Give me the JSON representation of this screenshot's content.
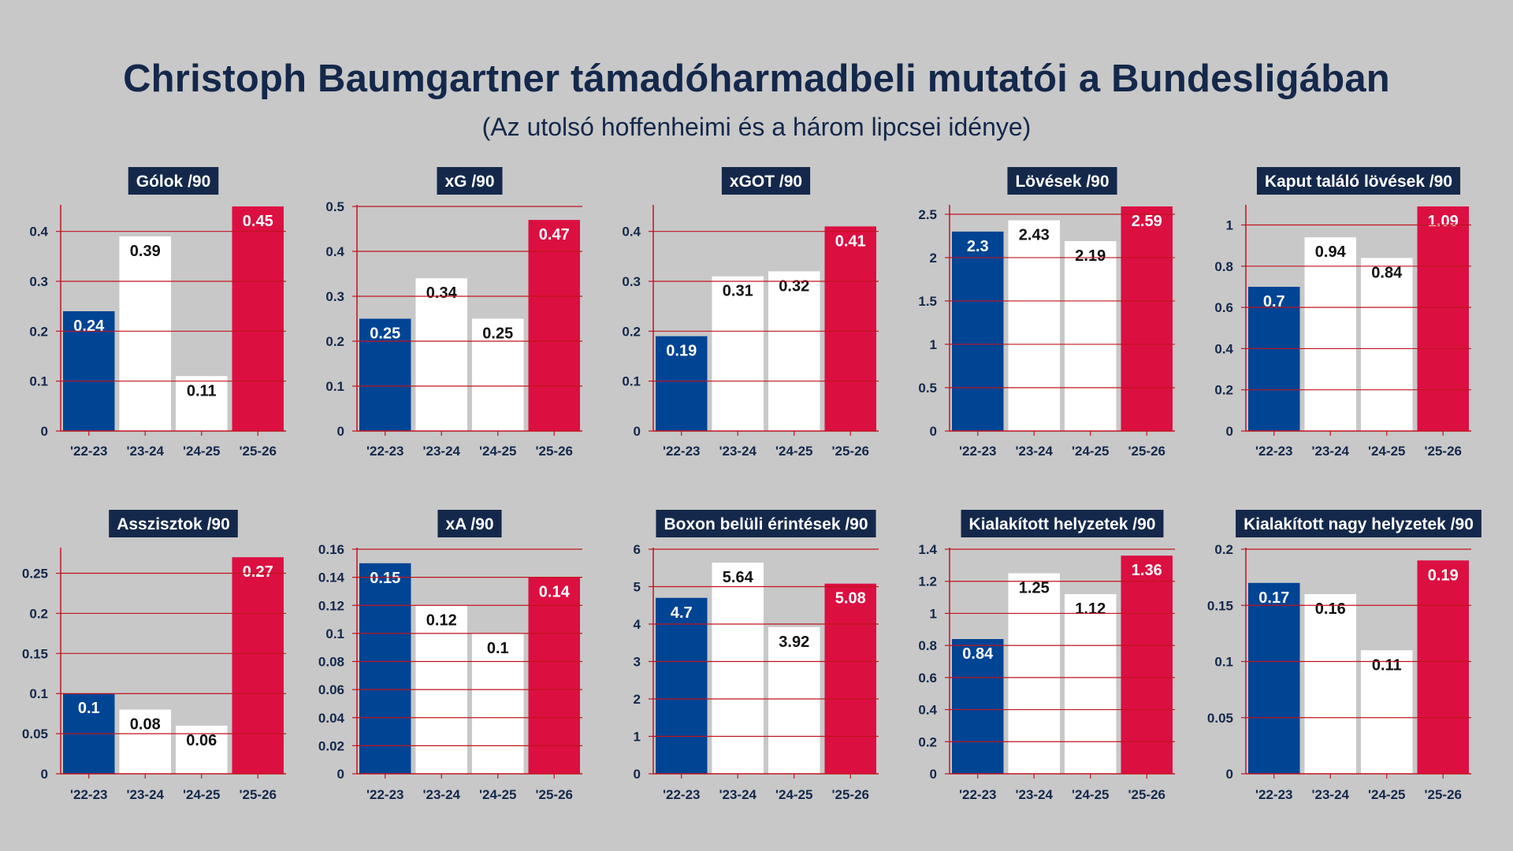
{
  "title": "Christoph Baumgartner támadóharmadbeli mutatói a Bundesligában",
  "subtitle": "(Az utolsó hoffenheimi és a három lipcsei idénye)",
  "colors": {
    "background": "#c8c8c8",
    "title": "#14284b",
    "bar_first": "#004494",
    "bar_middle": "#ffffff",
    "bar_last": "#dc0f41",
    "grid": "#c0141e"
  },
  "chart_data": [
    {
      "type": "bar",
      "title": "Gólok /90",
      "categories": [
        "'22-23",
        "'23-24",
        "'24-25",
        "'25-26"
      ],
      "values": [
        0.24,
        0.39,
        0.11,
        0.45
      ],
      "value_labels": [
        "0.24",
        "0.39",
        "0.11",
        "0.45"
      ],
      "ylim": [
        0,
        0.45
      ],
      "yticks": [
        0,
        0.1,
        0.2,
        0.3,
        0.4
      ],
      "ytick_labels": [
        "0",
        "0.1",
        "0.2",
        "0.3",
        "0.4"
      ]
    },
    {
      "type": "bar",
      "title": "xG /90",
      "categories": [
        "'22-23",
        "'23-24",
        "'24-25",
        "'25-26"
      ],
      "values": [
        0.25,
        0.34,
        0.25,
        0.47
      ],
      "value_labels": [
        "0.25",
        "0.34",
        "0.25",
        "0.47"
      ],
      "ylim": [
        0,
        0.5
      ],
      "yticks": [
        0,
        0.1,
        0.2,
        0.3,
        0.4,
        0.5
      ],
      "ytick_labels": [
        "0",
        "0.1",
        "0.2",
        "0.3",
        "0.4",
        "0.5"
      ]
    },
    {
      "type": "bar",
      "title": "xGOT /90",
      "categories": [
        "'22-23",
        "'23-24",
        "'24-25",
        "'25-26"
      ],
      "values": [
        0.19,
        0.31,
        0.32,
        0.41
      ],
      "value_labels": [
        "0.19",
        "0.31",
        "0.32",
        "0.41"
      ],
      "ylim": [
        0,
        0.45
      ],
      "yticks": [
        0,
        0.1,
        0.2,
        0.3,
        0.4
      ],
      "ytick_labels": [
        "0",
        "0.1",
        "0.2",
        "0.3",
        "0.4"
      ]
    },
    {
      "type": "bar",
      "title": "Lövések /90",
      "categories": [
        "'22-23",
        "'23-24",
        "'24-25",
        "'25-26"
      ],
      "values": [
        2.3,
        2.43,
        2.19,
        2.59
      ],
      "value_labels": [
        "2.3",
        "2.43",
        "2.19",
        "2.59"
      ],
      "ylim": [
        0,
        2.59
      ],
      "yticks": [
        0,
        0.5,
        1,
        1.5,
        2,
        2.5
      ],
      "ytick_labels": [
        "0",
        "0.5",
        "1",
        "1.5",
        "2",
        "2.5"
      ]
    },
    {
      "type": "bar",
      "title": "Kaput találó lövések /90",
      "categories": [
        "'22-23",
        "'23-24",
        "'24-25",
        "'25-26"
      ],
      "values": [
        0.7,
        0.94,
        0.84,
        1.09
      ],
      "value_labels": [
        "0.7",
        "0.94",
        "0.84",
        "1.09"
      ],
      "ylim": [
        0,
        1.09
      ],
      "yticks": [
        0,
        0.2,
        0.4,
        0.6,
        0.8,
        1
      ],
      "ytick_labels": [
        "0",
        "0.2",
        "0.4",
        "0.6",
        "0.8",
        "1"
      ]
    },
    {
      "type": "bar",
      "title": "Asszisztok /90",
      "categories": [
        "'22-23",
        "'23-24",
        "'24-25",
        "'25-26"
      ],
      "values": [
        0.1,
        0.08,
        0.06,
        0.27
      ],
      "value_labels": [
        "0.1",
        "0.08",
        "0.06",
        "0.27"
      ],
      "ylim": [
        0,
        0.28
      ],
      "yticks": [
        0,
        0.05,
        0.1,
        0.15,
        0.2,
        0.25
      ],
      "ytick_labels": [
        "0",
        "0.05",
        "0.1",
        "0.15",
        "0.2",
        "0.25"
      ]
    },
    {
      "type": "bar",
      "title": "xA /90",
      "categories": [
        "'22-23",
        "'23-24",
        "'24-25",
        "'25-26"
      ],
      "values": [
        0.15,
        0.12,
        0.1,
        0.14
      ],
      "value_labels": [
        "0.15",
        "0.12",
        "0.1",
        "0.14"
      ],
      "ylim": [
        0,
        0.16
      ],
      "yticks": [
        0,
        0.02,
        0.04,
        0.06,
        0.08,
        0.1,
        0.12,
        0.14,
        0.16
      ],
      "ytick_labels": [
        "0",
        "0.02",
        "0.04",
        "0.06",
        "0.08",
        "0.1",
        "0.12",
        "0.14",
        "0.16"
      ]
    },
    {
      "type": "bar",
      "title": "Boxon belüli érintések /90",
      "categories": [
        "'22-23",
        "'23-24",
        "'24-25",
        "'25-26"
      ],
      "values": [
        4.7,
        5.64,
        3.92,
        5.08
      ],
      "value_labels": [
        "4.7",
        "5.64",
        "3.92",
        "5.08"
      ],
      "ylim": [
        0,
        6
      ],
      "yticks": [
        0,
        1,
        2,
        3,
        4,
        5,
        6
      ],
      "ytick_labels": [
        "0",
        "1",
        "2",
        "3",
        "4",
        "5",
        "6"
      ]
    },
    {
      "type": "bar",
      "title": "Kialakított helyzetek /90",
      "categories": [
        "'22-23",
        "'23-24",
        "'24-25",
        "'25-26"
      ],
      "values": [
        0.84,
        1.25,
        1.12,
        1.36
      ],
      "value_labels": [
        "0.84",
        "1.25",
        "1.12",
        "1.36"
      ],
      "ylim": [
        0,
        1.4
      ],
      "yticks": [
        0,
        0.2,
        0.4,
        0.6,
        0.8,
        1,
        1.2,
        1.4
      ],
      "ytick_labels": [
        "0",
        "0.2",
        "0.4",
        "0.6",
        "0.8",
        "1",
        "1.2",
        "1.4"
      ]
    },
    {
      "type": "bar",
      "title": "Kialakított nagy helyzetek /90",
      "categories": [
        "'22-23",
        "'23-24",
        "'24-25",
        "'25-26"
      ],
      "values": [
        0.17,
        0.16,
        0.11,
        0.19
      ],
      "value_labels": [
        "0.17",
        "0.16",
        "0.11",
        "0.19"
      ],
      "ylim": [
        0,
        0.2
      ],
      "yticks": [
        0,
        0.05,
        0.1,
        0.15,
        0.2
      ],
      "ytick_labels": [
        "0",
        "0.05",
        "0.1",
        "0.15",
        "0.2"
      ]
    }
  ]
}
